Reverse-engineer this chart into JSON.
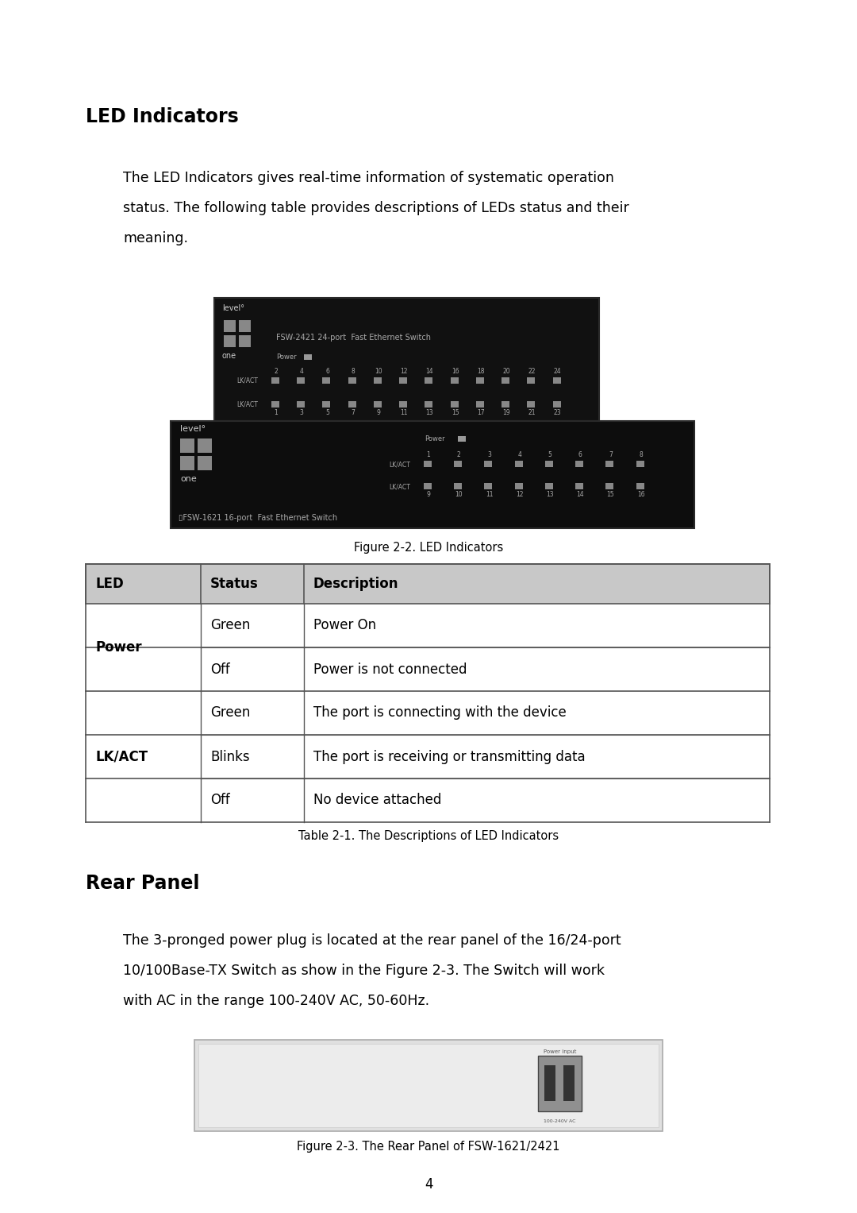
{
  "bg_color": "#ffffff",
  "page_width": 10.8,
  "page_height": 15.27,
  "section1_title": "LED Indicators",
  "section1_body_lines": [
    "The LED Indicators gives real-time information of systematic operation",
    "status. The following table provides descriptions of LEDs status and their",
    "meaning."
  ],
  "fig_caption1": "Figure 2-2. LED Indicators",
  "table_caption": "Table 2-1. The Descriptions of LED Indicators",
  "table_header": [
    "LED",
    "Status",
    "Description"
  ],
  "section2_title": "Rear Panel",
  "section2_body_lines": [
    "The 3-pronged power plug is located at the rear panel of the 16/24-port",
    "10/100Base-TX Switch as show in the Figure 2-3. The Switch will work",
    "with AC in the range 100-240V AC, 50-60Hz."
  ],
  "fig_caption2": "Figure 2-3. The Rear Panel of FSW-1621/2421",
  "page_number": "4",
  "table_border_color": "#555555",
  "body_font_size": 12.5,
  "title_font_size": 17,
  "caption_font_size": 10.5,
  "table_font_size": 12
}
